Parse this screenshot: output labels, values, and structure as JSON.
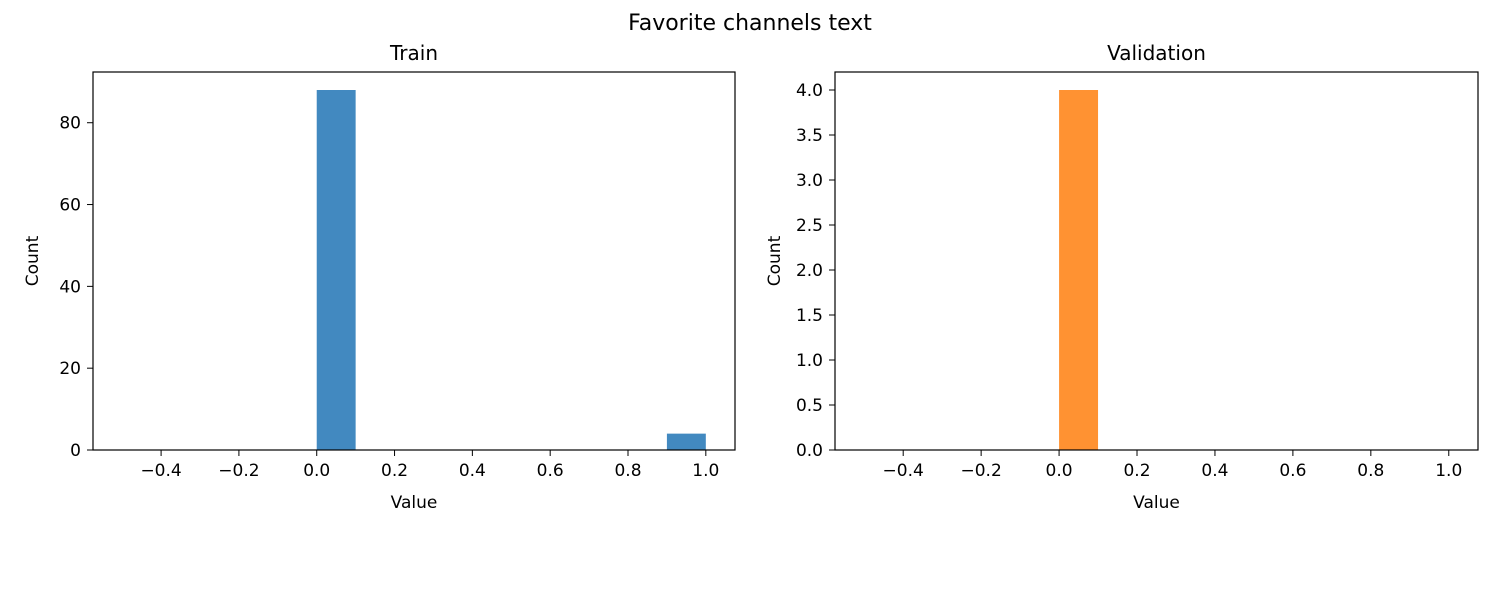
{
  "figure": {
    "suptitle": "Favorite channels text"
  },
  "chart_data": [
    {
      "type": "bar",
      "title": "Train",
      "xlabel": "Value",
      "ylabel": "Count",
      "xlim": [
        -0.575,
        1.075
      ],
      "ylim": [
        0,
        92.4
      ],
      "xticks": [
        -0.4,
        -0.2,
        0.0,
        0.2,
        0.4,
        0.6,
        0.8,
        1.0
      ],
      "xtick_labels": [
        "−0.4",
        "−0.2",
        "0.0",
        "0.2",
        "0.4",
        "0.6",
        "0.8",
        "1.0"
      ],
      "yticks": [
        0,
        20,
        40,
        60,
        80
      ],
      "ytick_labels": [
        "0",
        "20",
        "40",
        "60",
        "80"
      ],
      "bin_width": 0.1,
      "bars": [
        {
          "x": 0.0,
          "value": 88
        },
        {
          "x": 0.9,
          "value": 4
        }
      ],
      "color": "#4289c0",
      "grid": false
    },
    {
      "type": "bar",
      "title": "Validation",
      "xlabel": "Value",
      "ylabel": "Count",
      "xlim": [
        -0.575,
        1.075
      ],
      "ylim": [
        0,
        4.2
      ],
      "xticks": [
        -0.4,
        -0.2,
        0.0,
        0.2,
        0.4,
        0.6,
        0.8,
        1.0
      ],
      "xtick_labels": [
        "−0.4",
        "−0.2",
        "0.0",
        "0.2",
        "0.4",
        "0.6",
        "0.8",
        "1.0"
      ],
      "yticks": [
        0.0,
        0.5,
        1.0,
        1.5,
        2.0,
        2.5,
        3.0,
        3.5,
        4.0
      ],
      "ytick_labels": [
        "0.0",
        "0.5",
        "1.0",
        "1.5",
        "2.0",
        "2.5",
        "3.0",
        "3.5",
        "4.0"
      ],
      "bin_width": 0.1,
      "bars": [
        {
          "x": 0.0,
          "value": 4
        }
      ],
      "color": "#ff9232",
      "grid": false
    }
  ]
}
